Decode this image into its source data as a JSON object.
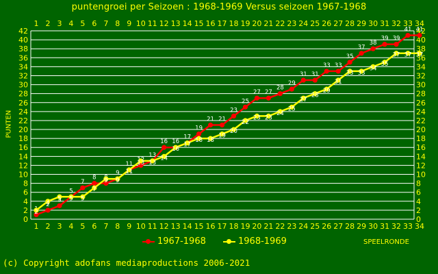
{
  "chart_data": {
    "type": "line",
    "title": "puntengroei per Seizoen : 1968-1969 Versus seizoen 1967-1968",
    "xlabel": "SPEELRONDE",
    "ylabel": "PUNTEN",
    "x": [
      1,
      2,
      3,
      4,
      5,
      6,
      7,
      8,
      9,
      10,
      11,
      12,
      13,
      14,
      15,
      16,
      17,
      18,
      19,
      20,
      21,
      22,
      23,
      24,
      25,
      26,
      27,
      28,
      29,
      30,
      31,
      32,
      33,
      34
    ],
    "xlim": [
      1,
      34
    ],
    "ylim": [
      0,
      42
    ],
    "yticks": [
      0,
      2,
      4,
      6,
      8,
      10,
      12,
      14,
      16,
      18,
      20,
      22,
      24,
      26,
      28,
      30,
      32,
      34,
      36,
      38,
      40,
      42
    ],
    "grid": true,
    "legend_position": "bottom",
    "series": [
      {
        "name": "1967-1968",
        "color": "#ff0000",
        "values": [
          1,
          2,
          3,
          5,
          7,
          8,
          8,
          9,
          11,
          12,
          13,
          16,
          16,
          17,
          19,
          21,
          21,
          23,
          25,
          27,
          27,
          28,
          29,
          31,
          31,
          33,
          33,
          35,
          37,
          38,
          39,
          39,
          41,
          41
        ]
      },
      {
        "name": "1968-1969",
        "color": "#ffff00",
        "values": [
          2,
          4,
          5,
          5,
          5,
          7,
          9,
          9,
          11,
          13,
          13,
          14,
          16,
          17,
          18,
          18,
          19,
          20,
          22,
          23,
          23,
          24,
          25,
          27,
          28,
          29,
          31,
          33,
          33,
          34,
          35,
          37,
          37,
          37
        ]
      }
    ]
  },
  "copyright": "(c) Copyright adofans mediaproductions 2006-2021",
  "colors": {
    "background": "#006400",
    "text": "#ffff00",
    "grid": "#ffffff"
  }
}
